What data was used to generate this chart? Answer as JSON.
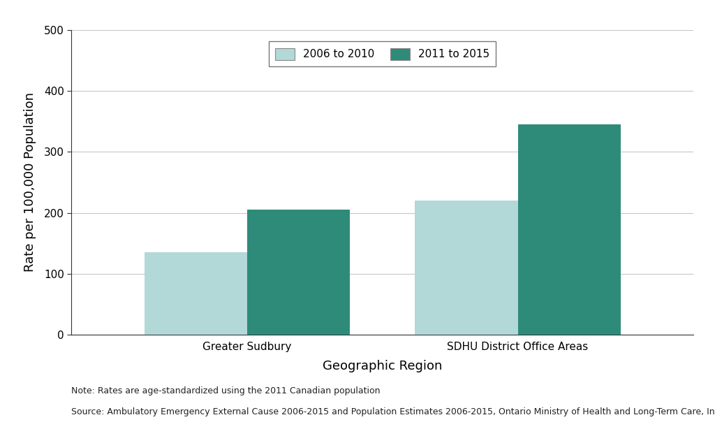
{
  "categories": [
    "Greater Sudbury",
    "SDHU District Office Areas"
  ],
  "series": [
    {
      "label": "2006 to 2010",
      "values": [
        135,
        220
      ],
      "color": "#b2d8d8"
    },
    {
      "label": "2011 to 2015",
      "values": [
        205,
        345
      ],
      "color": "#2e8b7a"
    }
  ],
  "ylabel": "Rate per 100,000 Population",
  "xlabel": "Geographic Region",
  "ylim": [
    0,
    500
  ],
  "yticks": [
    0,
    100,
    200,
    300,
    400,
    500
  ],
  "bar_width": 0.38,
  "note_line1": "Note: Rates are age-standardized using the 2011 Canadian population",
  "note_line2": "Source: Ambulatory Emergency External Cause 2006-2015 and Population Estimates 2006-2015, Ontario Ministry of Health and Long-Term Care, IntelliHEALTH Ontario",
  "background_color": "#ffffff",
  "grid_color": "#c8c8c8",
  "axis_label_fontsize": 13,
  "tick_fontsize": 11,
  "legend_fontsize": 11,
  "note_fontsize": 9
}
